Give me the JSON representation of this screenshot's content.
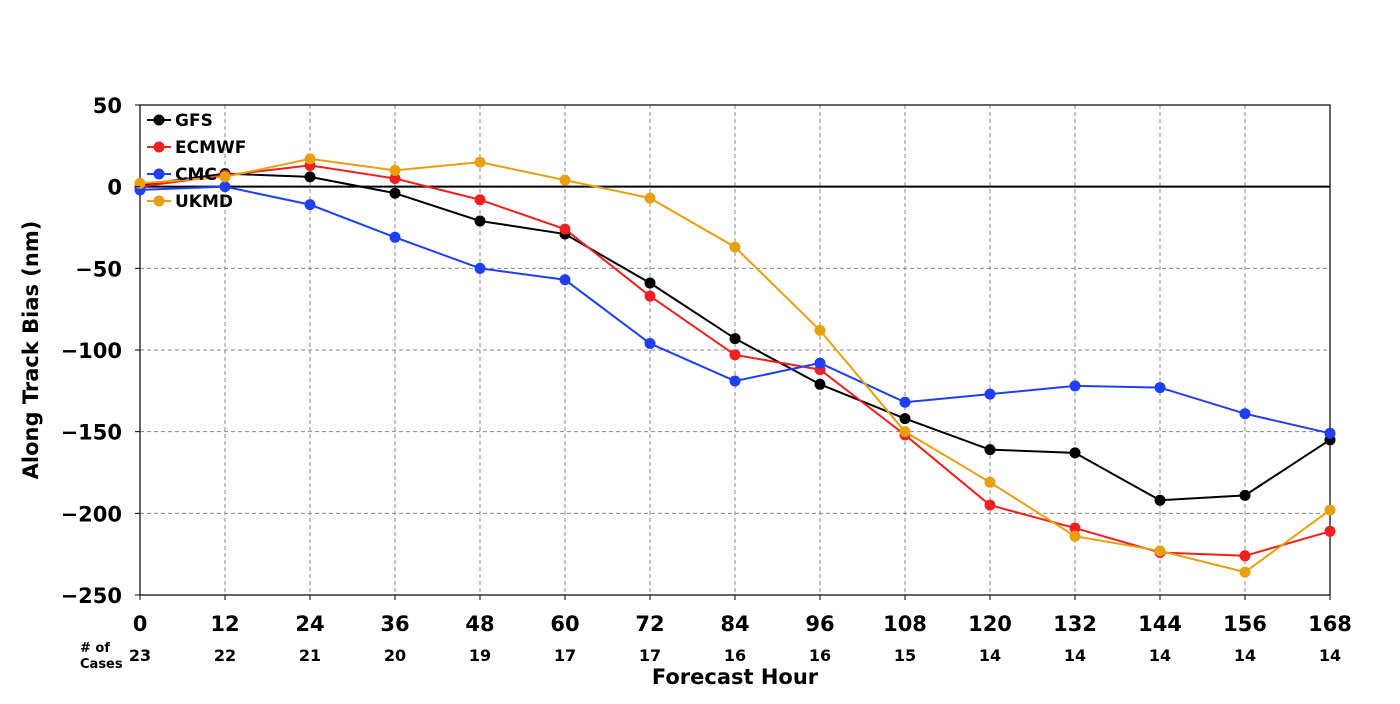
{
  "chart_data": {
    "type": "line",
    "title": "",
    "xlabel": "Forecast Hour",
    "ylabel": "Along Track Bias (nm)",
    "xlim": [
      0,
      168
    ],
    "ylim": [
      -250,
      50
    ],
    "x": [
      0,
      12,
      24,
      36,
      48,
      60,
      72,
      84,
      96,
      108,
      120,
      132,
      144,
      156,
      168
    ],
    "x_tick_labels": [
      "0",
      "12",
      "24",
      "36",
      "48",
      "60",
      "72",
      "84",
      "96",
      "108",
      "120",
      "132",
      "144",
      "156",
      "168"
    ],
    "y_ticks": [
      50,
      0,
      -50,
      -100,
      -150,
      -200,
      -250
    ],
    "y_tick_labels": [
      "50",
      "0",
      "−50",
      "−100",
      "−150",
      "−200",
      "−250"
    ],
    "cases_label": [
      "# of",
      "Cases"
    ],
    "cases": [
      "23",
      "22",
      "21",
      "20",
      "19",
      "17",
      "17",
      "16",
      "16",
      "15",
      "14",
      "14",
      "14",
      "14",
      "14"
    ],
    "grid": true,
    "zero_line": true,
    "legend_position": "upper-left",
    "series": [
      {
        "name": "GFS",
        "color": "#000000",
        "values": [
          1,
          8,
          6,
          -4,
          -21,
          -29,
          -59,
          -93,
          -121,
          -142,
          -161,
          -163,
          -192,
          -189,
          -155
        ]
      },
      {
        "name": "ECMWF",
        "color": "#f02020",
        "values": [
          0,
          7,
          13,
          5,
          -8,
          -26,
          -67,
          -103,
          -112,
          -152,
          -195,
          -209,
          -224,
          -226,
          -211
        ]
      },
      {
        "name": "CMC",
        "color": "#1f3ff5",
        "values": [
          -2,
          0,
          -11,
          -31,
          -50,
          -57,
          -96,
          -119,
          -108,
          -132,
          -127,
          -122,
          -123,
          -139,
          -151
        ]
      },
      {
        "name": "UKMD",
        "color": "#e8a010",
        "values": [
          2,
          6,
          17,
          10,
          15,
          4,
          -7,
          -37,
          -88,
          -150,
          -181,
          -214,
          -223,
          -236,
          -198
        ]
      }
    ]
  }
}
